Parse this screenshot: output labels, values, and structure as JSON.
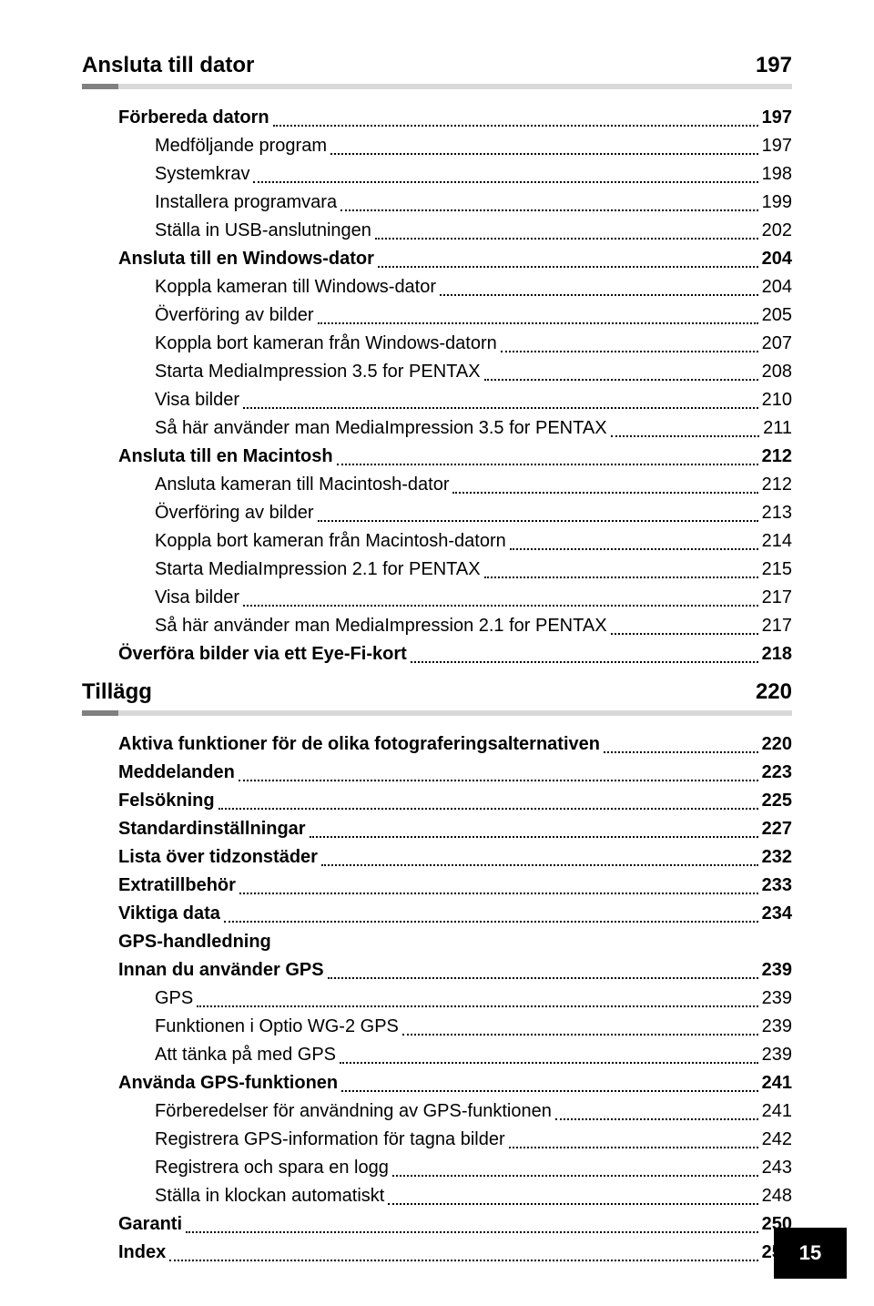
{
  "page_number": "15",
  "sections": [
    {
      "title": "Ansluta till dator",
      "page": "197",
      "items": [
        {
          "level": 1,
          "bold": true,
          "label": "Förbereda datorn",
          "pg": "197"
        },
        {
          "level": 2,
          "bold": false,
          "label": "Medföljande program",
          "pg": "197"
        },
        {
          "level": 2,
          "bold": false,
          "label": "Systemkrav",
          "pg": "198"
        },
        {
          "level": 2,
          "bold": false,
          "label": "Installera programvara",
          "pg": "199"
        },
        {
          "level": 2,
          "bold": false,
          "label": "Ställa in USB-anslutningen",
          "pg": "202"
        },
        {
          "level": 1,
          "bold": true,
          "label": "Ansluta till en Windows-dator",
          "pg": "204"
        },
        {
          "level": 2,
          "bold": false,
          "label": "Koppla kameran till Windows-dator",
          "pg": "204"
        },
        {
          "level": 2,
          "bold": false,
          "label": "Överföring av bilder",
          "pg": "205"
        },
        {
          "level": 2,
          "bold": false,
          "label": "Koppla bort kameran från Windows-datorn",
          "pg": "207"
        },
        {
          "level": 2,
          "bold": false,
          "label": "Starta MediaImpression 3.5 for PENTAX",
          "pg": "208"
        },
        {
          "level": 2,
          "bold": false,
          "label": "Visa bilder",
          "pg": "210"
        },
        {
          "level": 2,
          "bold": false,
          "label": "Så här använder man MediaImpression 3.5 for PENTAX",
          "pg": "211"
        },
        {
          "level": 1,
          "bold": true,
          "label": "Ansluta till en Macintosh",
          "pg": "212"
        },
        {
          "level": 2,
          "bold": false,
          "label": "Ansluta kameran till Macintosh-dator",
          "pg": "212"
        },
        {
          "level": 2,
          "bold": false,
          "label": "Överföring av bilder",
          "pg": "213"
        },
        {
          "level": 2,
          "bold": false,
          "label": "Koppla bort kameran från Macintosh-datorn",
          "pg": "214"
        },
        {
          "level": 2,
          "bold": false,
          "label": "Starta MediaImpression 2.1 for PENTAX",
          "pg": "215"
        },
        {
          "level": 2,
          "bold": false,
          "label": "Visa bilder",
          "pg": "217"
        },
        {
          "level": 2,
          "bold": false,
          "label": "Så här använder man MediaImpression 2.1 for PENTAX",
          "pg": "217"
        },
        {
          "level": 1,
          "bold": true,
          "label": "Överföra bilder via ett Eye-Fi-kort",
          "pg": "218"
        }
      ]
    },
    {
      "title": "Tillägg",
      "page": "220",
      "items": [
        {
          "level": 1,
          "bold": true,
          "label": "Aktiva funktioner för de olika fotograferingsalternativen",
          "pg": "220"
        },
        {
          "level": 1,
          "bold": true,
          "label": "Meddelanden",
          "pg": "223"
        },
        {
          "level": 1,
          "bold": true,
          "label": "Felsökning",
          "pg": "225"
        },
        {
          "level": 1,
          "bold": true,
          "label": "Standardinställningar",
          "pg": "227"
        },
        {
          "level": 1,
          "bold": true,
          "label": "Lista över tidzonstäder",
          "pg": "232"
        },
        {
          "level": 1,
          "bold": true,
          "label": "Extratillbehör",
          "pg": "233"
        },
        {
          "level": 1,
          "bold": true,
          "label": "Viktiga data",
          "pg": "234"
        },
        {
          "level": 1,
          "bold": true,
          "label": "GPS-handledning",
          "pg": null
        },
        {
          "level": 1,
          "bold": true,
          "label": "Innan du använder GPS",
          "pg": "239"
        },
        {
          "level": 2,
          "bold": false,
          "label": "GPS",
          "pg": "239"
        },
        {
          "level": 2,
          "bold": false,
          "label": "Funktionen i Optio WG-2 GPS",
          "pg": "239"
        },
        {
          "level": 2,
          "bold": false,
          "label": "Att tänka på med GPS",
          "pg": "239"
        },
        {
          "level": 1,
          "bold": true,
          "label": "Använda GPS-funktionen",
          "pg": "241"
        },
        {
          "level": 2,
          "bold": false,
          "label": "Förberedelser för användning av GPS-funktionen",
          "pg": "241"
        },
        {
          "level": 2,
          "bold": false,
          "label": "Registrera GPS-information för tagna bilder",
          "pg": "242"
        },
        {
          "level": 2,
          "bold": false,
          "label": "Registrera och spara en logg",
          "pg": "243"
        },
        {
          "level": 2,
          "bold": false,
          "label": "Ställa in klockan automatiskt",
          "pg": "248"
        },
        {
          "level": 1,
          "bold": true,
          "label": "Garanti",
          "pg": "250"
        },
        {
          "level": 1,
          "bold": true,
          "label": "Index",
          "pg": "255"
        }
      ]
    }
  ]
}
